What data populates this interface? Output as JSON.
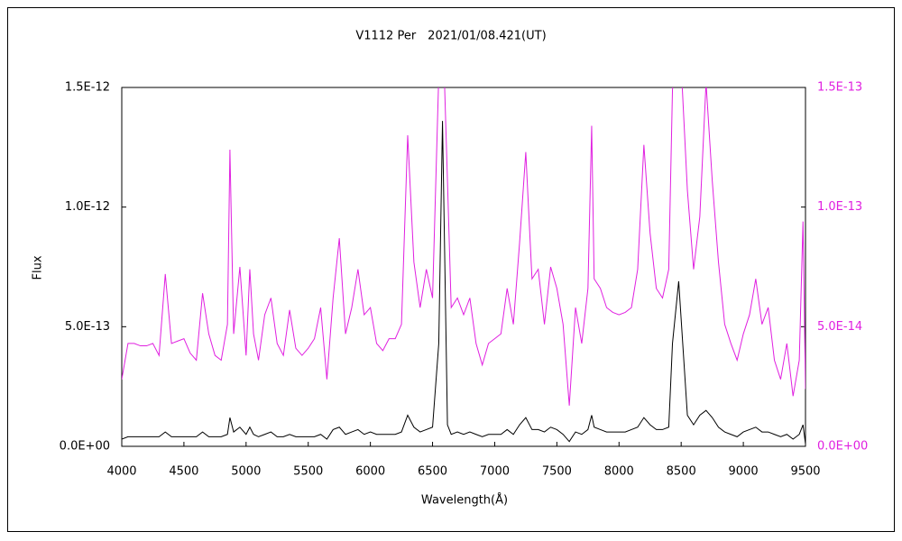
{
  "chart_data": {
    "type": "line",
    "title": "V1112 Per　2021/01/08.421(UT)",
    "x_label": "Wavelength(Å)",
    "y_label": "Flux",
    "x": [
      4000,
      4050,
      4100,
      4150,
      4200,
      4250,
      4300,
      4350,
      4400,
      4450,
      4500,
      4550,
      4600,
      4650,
      4700,
      4750,
      4800,
      4850,
      4870,
      4900,
      4950,
      5000,
      5030,
      5060,
      5100,
      5150,
      5200,
      5250,
      5300,
      5350,
      5400,
      5450,
      5500,
      5550,
      5600,
      5650,
      5700,
      5750,
      5800,
      5850,
      5900,
      5950,
      6000,
      6050,
      6100,
      6150,
      6200,
      6250,
      6300,
      6350,
      6400,
      6450,
      6500,
      6550,
      6580,
      6620,
      6650,
      6700,
      6750,
      6800,
      6850,
      6900,
      6950,
      7000,
      7050,
      7100,
      7150,
      7200,
      7250,
      7300,
      7350,
      7400,
      7450,
      7500,
      7550,
      7600,
      7650,
      7700,
      7750,
      7780,
      7800,
      7850,
      7900,
      7950,
      8000,
      8050,
      8100,
      8150,
      8200,
      8250,
      8300,
      8350,
      8400,
      8430,
      8480,
      8550,
      8600,
      8650,
      8700,
      8750,
      8800,
      8850,
      8900,
      8950,
      9000,
      9050,
      9100,
      9150,
      9200,
      9250,
      9300,
      9350,
      9400,
      9450,
      9480,
      9500
    ],
    "series": [
      {
        "color": "#000000",
        "axis": "y",
        "values": [
          3e-14,
          4e-14,
          4e-14,
          4e-14,
          4e-14,
          4e-14,
          4e-14,
          6e-14,
          4e-14,
          4e-14,
          4e-14,
          4e-14,
          4e-14,
          6e-14,
          4e-14,
          4e-14,
          4e-14,
          5e-14,
          1.2e-13,
          6e-14,
          8e-14,
          5e-14,
          8e-14,
          5e-14,
          4e-14,
          5e-14,
          6e-14,
          4e-14,
          4e-14,
          5e-14,
          4e-14,
          4e-14,
          4e-14,
          4e-14,
          5e-14,
          3e-14,
          7e-14,
          8e-14,
          5e-14,
          6e-14,
          7e-14,
          5e-14,
          6e-14,
          5e-14,
          5e-14,
          5e-14,
          5e-14,
          6e-14,
          1.3e-13,
          8e-14,
          6e-14,
          7e-14,
          8e-14,
          4.3e-13,
          1.36e-12,
          9e-14,
          5e-14,
          6e-14,
          5e-14,
          6e-14,
          5e-14,
          4e-14,
          5e-14,
          5e-14,
          5e-14,
          7e-14,
          5e-14,
          9e-14,
          1.2e-13,
          7e-14,
          7e-14,
          6e-14,
          8e-14,
          7e-14,
          5e-14,
          2e-14,
          6e-14,
          5e-14,
          7e-14,
          1.3e-13,
          8e-14,
          7e-14,
          6e-14,
          6e-14,
          6e-14,
          6e-14,
          7e-14,
          8e-14,
          1.2e-13,
          9e-14,
          7e-14,
          7e-14,
          8e-14,
          4.3e-13,
          6.9e-13,
          1.3e-13,
          9e-14,
          1.3e-13,
          1.5e-13,
          1.2e-13,
          8e-14,
          6e-14,
          5e-14,
          4e-14,
          6e-14,
          7e-14,
          8e-14,
          6e-14,
          6e-14,
          5e-14,
          4e-14,
          5e-14,
          3e-14,
          5e-14,
          9e-14,
          1e-14
        ]
      },
      {
        "color": "#e020e0",
        "axis": "y2",
        "values": [
          2.8e-14,
          4.3e-14,
          4.3e-14,
          4.2e-14,
          4.2e-14,
          4.3e-14,
          3.8e-14,
          7.2e-14,
          4.3e-14,
          4.4e-14,
          4.5e-14,
          3.9e-14,
          3.6e-14,
          6.4e-14,
          4.7e-14,
          3.8e-14,
          3.6e-14,
          5.1e-14,
          1.24e-13,
          4.7e-14,
          7.5e-14,
          3.8e-14,
          7.4e-14,
          4.7e-14,
          3.6e-14,
          5.5e-14,
          6.2e-14,
          4.3e-14,
          3.8e-14,
          5.7e-14,
          4.1e-14,
          3.8e-14,
          4.1e-14,
          4.5e-14,
          5.8e-14,
          2.8e-14,
          6.2e-14,
          8.7e-14,
          4.7e-14,
          5.8e-14,
          7.4e-14,
          5.5e-14,
          5.8e-14,
          4.3e-14,
          4e-14,
          4.5e-14,
          4.5e-14,
          5.1e-14,
          1.3e-13,
          7.7e-14,
          5.8e-14,
          7.4e-14,
          6.2e-14,
          1.55e-13,
          1.8e-13,
          1.11e-13,
          5.8e-14,
          6.2e-14,
          5.5e-14,
          6.2e-14,
          4.3e-14,
          3.4e-14,
          4.3e-14,
          4.5e-14,
          4.7e-14,
          6.6e-14,
          5.1e-14,
          8.5e-14,
          1.23e-13,
          7e-14,
          7.4e-14,
          5.1e-14,
          7.5e-14,
          6.6e-14,
          5.1e-14,
          1.7e-14,
          5.8e-14,
          4.3e-14,
          6.6e-14,
          1.34e-13,
          7e-14,
          6.6e-14,
          5.8e-14,
          5.6e-14,
          5.5e-14,
          5.6e-14,
          5.8e-14,
          7.4e-14,
          1.26e-13,
          8.9e-14,
          6.6e-14,
          6.2e-14,
          7.4e-14,
          1.49e-13,
          1.8e-13,
          1.07e-13,
          7.4e-14,
          9.6e-14,
          1.52e-13,
          1.11e-13,
          7.7e-14,
          5.1e-14,
          4.3e-14,
          3.6e-14,
          4.7e-14,
          5.5e-14,
          7e-14,
          5.1e-14,
          5.8e-14,
          3.6e-14,
          2.8e-14,
          4.3e-14,
          2.1e-14,
          3.6e-14,
          9.4e-14,
          2.4e-14
        ]
      }
    ],
    "xlim": [
      4000,
      9500
    ],
    "xticks": [
      4000,
      4500,
      5000,
      5500,
      6000,
      6500,
      7000,
      7500,
      8000,
      8500,
      9000,
      9500
    ],
    "ylim": [
      0,
      1.5e-12
    ],
    "yticks": [
      {
        "value": 0,
        "label": "0.0E+00"
      },
      {
        "value": 5e-13,
        "label": "5.0E-13"
      },
      {
        "value": 1e-12,
        "label": "1.0E-12"
      },
      {
        "value": 1.5e-12,
        "label": "1.5E-12"
      }
    ],
    "y2lim": [
      0,
      1.5e-13
    ],
    "y2ticks": [
      {
        "value": 0,
        "label": "0.0E+00"
      },
      {
        "value": 5e-14,
        "label": "5.0E-14"
      },
      {
        "value": 1e-13,
        "label": "1.0E-13"
      },
      {
        "value": 1.5e-13,
        "label": "1.5E-13"
      }
    ],
    "y2_color": "#e020e0",
    "grid": false
  }
}
